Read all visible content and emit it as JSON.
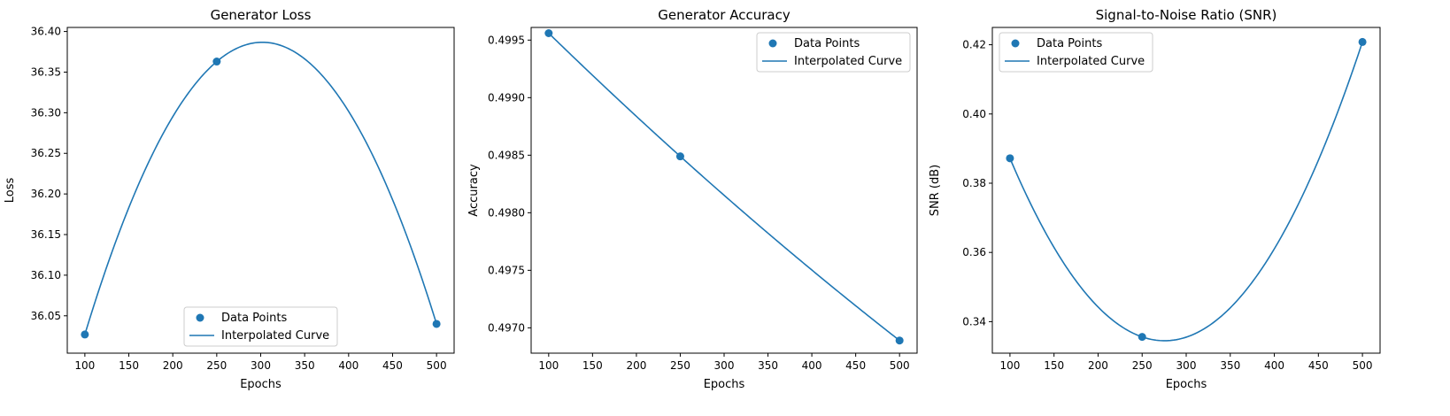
{
  "chart_data": [
    {
      "type": "line",
      "title": "Generator Loss",
      "xlabel": "Epochs",
      "ylabel": "Loss",
      "xlim": [
        80,
        520
      ],
      "ylim": [
        36.004,
        36.405
      ],
      "x_ticks": [
        100,
        150,
        200,
        250,
        300,
        350,
        400,
        450,
        500
      ],
      "y_ticks": [
        36.05,
        36.1,
        36.15,
        36.2,
        36.25,
        36.3,
        36.35,
        36.4
      ],
      "y_tick_labels": [
        "36.05",
        "36.10",
        "36.15",
        "36.20",
        "36.25",
        "36.30",
        "36.35",
        "36.40"
      ],
      "legend_loc": "lower-center",
      "grid": false,
      "series": [
        {
          "name": "Data Points",
          "kind": "scatter",
          "x": [
            100,
            250,
            500
          ],
          "y": [
            36.027,
            36.363,
            36.04
          ]
        },
        {
          "name": "Interpolated Curve",
          "kind": "line",
          "x": [
            100,
            250,
            500
          ],
          "y": [
            36.027,
            36.363,
            36.04
          ],
          "interpolation": "quadratic"
        }
      ]
    },
    {
      "type": "line",
      "title": "Generator Accuracy",
      "xlabel": "Epochs",
      "ylabel": "Accuracy",
      "xlim": [
        80,
        520
      ],
      "ylim": [
        0.49678,
        0.49961
      ],
      "x_ticks": [
        100,
        150,
        200,
        250,
        300,
        350,
        400,
        450,
        500
      ],
      "y_ticks": [
        0.497,
        0.4975,
        0.498,
        0.4985,
        0.499,
        0.4995
      ],
      "y_tick_labels": [
        "0.4970",
        "0.4975",
        "0.4980",
        "0.4985",
        "0.4990",
        "0.4995"
      ],
      "legend_loc": "upper-right",
      "grid": false,
      "series": [
        {
          "name": "Data Points",
          "kind": "scatter",
          "x": [
            100,
            250,
            500
          ],
          "y": [
            0.49956,
            0.49849,
            0.49689
          ]
        },
        {
          "name": "Interpolated Curve",
          "kind": "line",
          "x": [
            100,
            250,
            500
          ],
          "y": [
            0.49956,
            0.49849,
            0.49689
          ],
          "interpolation": "quadratic"
        }
      ]
    },
    {
      "type": "line",
      "title": "Signal-to-Noise Ratio (SNR)",
      "xlabel": "Epochs",
      "ylabel": "SNR (dB)",
      "xlim": [
        80,
        520
      ],
      "ylim": [
        0.3309,
        0.425
      ],
      "x_ticks": [
        100,
        150,
        200,
        250,
        300,
        350,
        400,
        450,
        500
      ],
      "y_ticks": [
        0.34,
        0.36,
        0.38,
        0.4,
        0.42
      ],
      "y_tick_labels": [
        "0.34",
        "0.36",
        "0.38",
        "0.40",
        "0.42"
      ],
      "legend_loc": "upper-left",
      "grid": false,
      "series": [
        {
          "name": "Data Points",
          "kind": "scatter",
          "x": [
            100,
            250,
            500
          ],
          "y": [
            0.3872,
            0.3356,
            0.4208
          ]
        },
        {
          "name": "Interpolated Curve",
          "kind": "line",
          "x": [
            100,
            250,
            500
          ],
          "y": [
            0.3872,
            0.3356,
            0.4208
          ],
          "interpolation": "quadratic"
        }
      ]
    }
  ],
  "colors": {
    "series": "#1f77b4",
    "axis": "#000000",
    "legend_border": "#cccccc"
  }
}
